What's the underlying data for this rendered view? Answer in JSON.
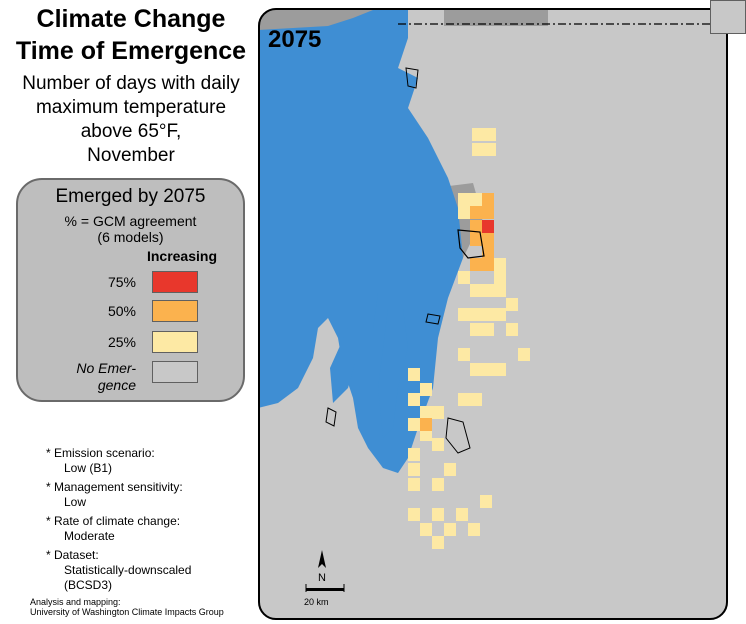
{
  "title": [
    "Climate Change",
    "Time of Emergence"
  ],
  "subtitle": [
    "Number of days with daily",
    "maximum temperature",
    "above 65°F,",
    "November"
  ],
  "legend": {
    "title": "Emerged by 2075",
    "subtitle": [
      "% = GCM agreement",
      "(6 models)"
    ],
    "heading": "Increasing",
    "items": [
      {
        "label": "75%",
        "color": "#e8372c"
      },
      {
        "label": "50%",
        "color": "#fbb24e"
      },
      {
        "label": "25%",
        "color": "#fde9a4"
      },
      {
        "label": "No Emergence",
        "label_lines": [
          "No Emer-",
          "gence"
        ],
        "color": "#c8c8c8"
      }
    ]
  },
  "notes": [
    {
      "label": "* Emission scenario:",
      "value": "Low (B1)"
    },
    {
      "label": "* Management sensitivity:",
      "value": "Low"
    },
    {
      "label": "* Rate of climate change:",
      "value": "Moderate"
    },
    {
      "label": "* Dataset:",
      "value_lines": [
        "Statistically-downscaled",
        "(BCSD3)"
      ]
    }
  ],
  "credit": [
    "Analysis and mapping:",
    "University of Washington Climate Impacts Group"
  ],
  "map": {
    "year": "2075",
    "scale_label": "20 km",
    "north_label": "N",
    "colors": {
      "water": "#3f8ed3",
      "land": "#c8c8c8",
      "outside": "#9c9c9c"
    }
  }
}
